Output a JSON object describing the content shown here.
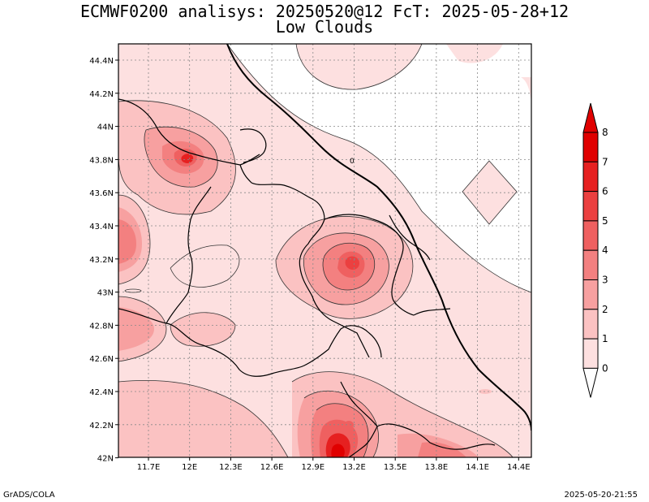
{
  "title": {
    "line1": "ECMWF0200 analisys: 20250520@12 FcT: 2025-05-28+12",
    "line2": "Low Clouds"
  },
  "footer": {
    "left": "GrADS/COLA",
    "right": "2025-05-20-21:55"
  },
  "map": {
    "lat_ticks": [
      "44.4N",
      "44.2N",
      "44N",
      "43.8N",
      "43.6N",
      "43.4N",
      "43.2N",
      "43N",
      "42.8N",
      "42.6N",
      "42.4N",
      "42.2N",
      "42N"
    ],
    "lon_ticks": [
      "11.7E",
      "12E",
      "12.3E",
      "12.6E",
      "12.9E",
      "13.2E",
      "13.5E",
      "13.8E",
      "14.1E",
      "14.4E"
    ],
    "contour_label": "0",
    "grid": true
  },
  "colorbar": {
    "labels": [
      "0",
      "1",
      "2",
      "3",
      "4",
      "5",
      "6",
      "7",
      "8"
    ],
    "colors": [
      "#ffffff",
      "#fde0e0",
      "#fbc2c2",
      "#f7a0a0",
      "#f38080",
      "#ef6060",
      "#eb4040",
      "#e62020",
      "#e00000"
    ]
  }
}
